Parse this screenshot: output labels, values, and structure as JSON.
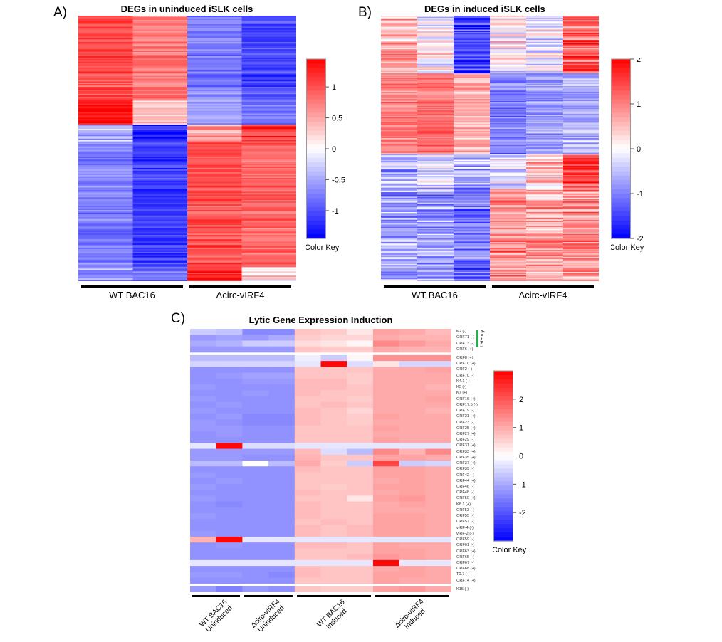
{
  "chart_data": [
    {
      "type": "heatmap",
      "panel": "A)",
      "title": "DEGs in uninduced iSLK cells",
      "columns": 4,
      "groups": [
        {
          "label": "WT BAC16",
          "columns": 2
        },
        {
          "label": "Δcirc-vIRF4",
          "columns": 2
        }
      ],
      "color_key": {
        "title": "Color Key",
        "low_color": "#0000ff",
        "mid_color": "#ffffff",
        "high_color": "#ff0000",
        "range": [
          -1.45,
          1.45
        ],
        "ticks": [
          {
            "value": 1,
            "label": "1"
          },
          {
            "value": 0.5,
            "label": "0.5"
          },
          {
            "value": 0,
            "label": "0"
          },
          {
            "value": -0.5,
            "label": "-0.5"
          },
          {
            "value": -1,
            "label": "-1"
          }
        ]
      },
      "row_blocks": [
        {
          "rows": 60,
          "means": [
            1.0,
            0.75,
            -0.75,
            -1.05
          ],
          "noise": 0.2
        },
        {
          "rows": 18,
          "means": [
            1.3,
            0.3,
            -0.5,
            -0.8
          ],
          "noise": 0.2
        },
        {
          "rows": 12,
          "means": [
            -0.4,
            -1.2,
            0.5,
            1.2
          ],
          "noise": 0.3
        },
        {
          "rows": 90,
          "means": [
            -0.75,
            -1.1,
            1.0,
            0.85
          ],
          "noise": 0.2
        },
        {
          "rows": 10,
          "means": [
            -0.6,
            -0.9,
            1.3,
            0.2
          ],
          "noise": 0.3
        }
      ]
    },
    {
      "type": "heatmap",
      "panel": "B)",
      "title": "DEGs in induced iSLK cells",
      "columns": 6,
      "groups": [
        {
          "label": "WT BAC16",
          "columns": 3
        },
        {
          "label": "Δcirc-vIRF4",
          "columns": 3
        }
      ],
      "color_key": {
        "title": "Color Key",
        "low_color": "#0000ff",
        "mid_color": "#ffffff",
        "high_color": "#ff0000",
        "range": [
          -2,
          2
        ],
        "ticks": [
          {
            "value": 2,
            "label": "2"
          },
          {
            "value": 1,
            "label": "1"
          },
          {
            "value": 0,
            "label": "0"
          },
          {
            "value": -1,
            "label": "-1"
          },
          {
            "value": -2,
            "label": "-2"
          }
        ]
      },
      "row_blocks": [
        {
          "rows": 50,
          "means": [
            0.6,
            0.0,
            -1.5,
            0.1,
            -0.2,
            1.3
          ],
          "noise": 0.6
        },
        {
          "rows": 70,
          "means": [
            1.0,
            1.1,
            0.6,
            -1.0,
            -0.8,
            -0.6
          ],
          "noise": 0.35
        },
        {
          "rows": 30,
          "means": [
            -0.6,
            -0.4,
            -0.6,
            -0.2,
            0.4,
            1.5
          ],
          "noise": 0.6
        },
        {
          "rows": 80,
          "means": [
            -0.7,
            -0.8,
            -1.1,
            0.9,
            0.7,
            0.9
          ],
          "noise": 0.55
        }
      ]
    },
    {
      "type": "heatmap",
      "panel": "C)",
      "title": "Lytic Gene Expression Induction",
      "columns": 10,
      "groups": [
        {
          "label": "WT BAC16\nUninduced",
          "columns": 2
        },
        {
          "label": "Δcirc-vIRF4\nUninduced",
          "columns": 2
        },
        {
          "label": "WT BAC16\nInduced",
          "columns": 3
        },
        {
          "label": "Δcirc-vIRF4\nInduced",
          "columns": 3
        }
      ],
      "annotation": {
        "label": "Latency",
        "color": "#22b14c",
        "rows": [
          "K2 (-)",
          "ORF71 (-)",
          "ORF73 (-)"
        ]
      },
      "color_key": {
        "title": "Color Key",
        "low_color": "#0000ff",
        "mid_color": "#ffffff",
        "high_color": "#ff0000",
        "range": [
          -3,
          3
        ],
        "ticks": [
          {
            "value": 2,
            "label": "2"
          },
          {
            "value": 1,
            "label": "1"
          },
          {
            "value": 0,
            "label": "0"
          },
          {
            "value": -1,
            "label": "-1"
          },
          {
            "value": -2,
            "label": "-2"
          }
        ]
      },
      "row_gaps_after": [
        "ORF6 (+)",
        "ORF74 (+)"
      ],
      "genes": [
        {
          "label": "K2 (-)",
          "values": [
            -0.6,
            -0.7,
            -1.4,
            -1.4,
            0.7,
            0.6,
            0.3,
            1.1,
            1.0,
            0.8
          ]
        },
        {
          "label": "ORF71 (-)",
          "values": [
            -1.2,
            -1.1,
            -1.2,
            -1.0,
            0.6,
            0.5,
            0.5,
            1.0,
            0.9,
            0.9
          ]
        },
        {
          "label": "ORF73 (-)",
          "values": [
            -1.0,
            -0.9,
            -0.6,
            -0.6,
            0.4,
            0.3,
            0.1,
            1.4,
            1.2,
            1.0
          ]
        },
        {
          "label": "ORF6 (+)",
          "values": [
            -1.2,
            -1.2,
            -1.2,
            -1.2,
            0.7,
            0.6,
            0.6,
            1.0,
            0.9,
            0.9
          ]
        },
        {
          "label": "ORF8 (+)",
          "values": [
            -0.8,
            -0.8,
            -0.8,
            -0.8,
            -0.2,
            -0.6,
            0.1,
            1.3,
            1.3,
            1.3
          ]
        },
        {
          "label": "ORF10 (+)",
          "values": [
            -0.5,
            -0.5,
            -0.5,
            -0.5,
            -0.3,
            2.9,
            -0.4,
            0.3,
            -0.5,
            -0.5
          ]
        },
        {
          "label": "ORF2 (-)",
          "values": [
            -1.3,
            -1.3,
            -1.3,
            -1.3,
            0.7,
            0.7,
            0.7,
            1.0,
            1.0,
            1.1
          ]
        },
        {
          "label": "ORF70 (-)",
          "values": [
            -1.3,
            -1.2,
            -1.1,
            -1.1,
            0.7,
            0.7,
            0.6,
            1.0,
            1.0,
            1.0
          ]
        },
        {
          "label": "K4.1 (-)",
          "values": [
            -1.3,
            -1.3,
            -1.2,
            -1.2,
            0.8,
            0.8,
            0.6,
            1.0,
            1.0,
            1.0
          ]
        },
        {
          "label": "K5 (-)",
          "values": [
            -1.2,
            -1.3,
            -1.3,
            -1.3,
            0.8,
            0.8,
            0.7,
            1.0,
            1.0,
            0.9
          ]
        },
        {
          "label": "K7 (+)",
          "values": [
            -1.3,
            -1.3,
            -1.2,
            -1.3,
            0.8,
            0.7,
            0.7,
            1.0,
            1.0,
            1.0
          ]
        },
        {
          "label": "ORF16 (+)",
          "values": [
            -1.2,
            -1.3,
            -1.3,
            -1.3,
            0.7,
            0.7,
            0.6,
            1.0,
            1.0,
            1.1
          ]
        },
        {
          "label": "ORF17.5 (-)",
          "values": [
            -1.3,
            -1.2,
            -1.3,
            -1.3,
            0.7,
            0.8,
            0.7,
            1.0,
            1.0,
            1.0
          ]
        },
        {
          "label": "ORF19 (-)",
          "values": [
            -1.2,
            -1.3,
            -1.3,
            -1.3,
            0.8,
            0.7,
            0.5,
            1.0,
            1.0,
            0.9
          ]
        },
        {
          "label": "ORF21 (+)",
          "values": [
            -1.3,
            -1.2,
            -1.4,
            -1.4,
            0.8,
            0.7,
            0.6,
            1.1,
            1.0,
            1.0
          ]
        },
        {
          "label": "ORF23 (-)",
          "values": [
            -1.2,
            -1.3,
            -1.4,
            -1.4,
            0.8,
            0.7,
            0.6,
            1.0,
            1.0,
            1.0
          ]
        },
        {
          "label": "ORF25 (+)",
          "values": [
            -1.2,
            -1.2,
            -1.3,
            -1.3,
            0.7,
            0.7,
            0.7,
            1.1,
            1.0,
            1.0
          ]
        },
        {
          "label": "ORF27 (+)",
          "values": [
            -1.3,
            -1.2,
            -1.3,
            -1.3,
            0.7,
            0.7,
            0.7,
            1.0,
            1.0,
            1.0
          ]
        },
        {
          "label": "ORF29 (-)",
          "values": [
            -1.3,
            -1.3,
            -1.3,
            -1.3,
            0.7,
            0.7,
            0.7,
            1.1,
            1.0,
            1.0
          ]
        },
        {
          "label": "ORF31 (+)",
          "values": [
            -0.3,
            2.9,
            -0.4,
            -0.4,
            -0.3,
            -0.3,
            -0.3,
            -0.3,
            -0.3,
            -0.3
          ]
        },
        {
          "label": "ORF33 (+)",
          "values": [
            -1.2,
            -1.2,
            -1.2,
            -1.2,
            0.8,
            -0.4,
            -0.8,
            1.4,
            0.9,
            1.4
          ]
        },
        {
          "label": "ORF35 (+)",
          "values": [
            -1.2,
            -1.2,
            -1.3,
            -1.3,
            0.9,
            0.7,
            0.7,
            1.1,
            1.1,
            1.0
          ]
        },
        {
          "label": "ORF37 (+)",
          "values": [
            -0.8,
            -0.8,
            0.0,
            -0.8,
            1.0,
            0.6,
            -0.6,
            2.2,
            -0.6,
            -0.5
          ]
        },
        {
          "label": "ORF39 (-)",
          "values": [
            -1.3,
            -1.3,
            -1.3,
            -1.3,
            0.8,
            0.7,
            0.7,
            1.1,
            1.1,
            1.0
          ]
        },
        {
          "label": "ORF42 (-)",
          "values": [
            -1.2,
            -1.3,
            -1.3,
            -1.3,
            0.7,
            0.7,
            0.7,
            1.1,
            1.1,
            1.0
          ]
        },
        {
          "label": "ORF44 (+)",
          "values": [
            -1.3,
            -1.2,
            -1.3,
            -1.3,
            0.7,
            0.7,
            0.7,
            1.0,
            1.1,
            1.0
          ]
        },
        {
          "label": "ORF46 (-)",
          "values": [
            -1.2,
            -1.3,
            -1.3,
            -1.3,
            0.7,
            0.6,
            0.7,
            1.1,
            1.1,
            1.0
          ]
        },
        {
          "label": "ORF48 (-)",
          "values": [
            -1.3,
            -1.3,
            -1.3,
            -1.3,
            0.8,
            0.7,
            0.7,
            1.0,
            1.1,
            1.0
          ]
        },
        {
          "label": "ORF50 (+)",
          "values": [
            -1.2,
            -1.3,
            -1.3,
            -1.3,
            0.7,
            0.7,
            0.3,
            1.1,
            1.2,
            1.0
          ]
        },
        {
          "label": "K8.1 (+)",
          "values": [
            -1.3,
            -1.4,
            -1.3,
            -1.3,
            0.8,
            0.7,
            0.7,
            1.0,
            1.1,
            1.0
          ]
        },
        {
          "label": "ORF53 (-)",
          "values": [
            -1.3,
            -1.3,
            -1.3,
            -1.3,
            0.8,
            0.7,
            0.7,
            1.0,
            1.0,
            1.0
          ]
        },
        {
          "label": "ORF55 (-)",
          "values": [
            -1.2,
            -1.3,
            -1.3,
            -1.3,
            0.8,
            0.7,
            0.7,
            1.1,
            1.1,
            1.0
          ]
        },
        {
          "label": "ORF57 (-)",
          "values": [
            -1.3,
            -1.3,
            -1.3,
            -1.3,
            0.7,
            0.8,
            0.7,
            1.1,
            1.1,
            1.0
          ]
        },
        {
          "label": "vIRF-4 (-)",
          "values": [
            -1.3,
            -1.3,
            -1.3,
            -1.3,
            0.8,
            0.7,
            0.8,
            1.1,
            1.1,
            1.0
          ]
        },
        {
          "label": "vIRF-2 (-)",
          "values": [
            -1.2,
            -1.3,
            -1.3,
            -1.3,
            0.8,
            0.7,
            0.8,
            1.1,
            1.1,
            1.0
          ]
        },
        {
          "label": "ORF59 (-)",
          "values": [
            0.9,
            2.9,
            -0.3,
            -0.3,
            -0.3,
            -0.3,
            -0.3,
            -0.3,
            -0.3,
            -0.3
          ]
        },
        {
          "label": "ORF61 (-)",
          "values": [
            -1.3,
            -1.2,
            -1.3,
            -1.3,
            0.8,
            0.8,
            0.7,
            1.1,
            1.0,
            1.0
          ]
        },
        {
          "label": "ORF63 (+)",
          "values": [
            -1.3,
            -1.3,
            -1.3,
            -1.3,
            0.7,
            0.7,
            0.7,
            1.1,
            1.1,
            1.0
          ]
        },
        {
          "label": "ORF65 (-)",
          "values": [
            -1.3,
            -1.3,
            -1.3,
            -1.3,
            0.7,
            0.7,
            0.8,
            1.2,
            1.1,
            1.0
          ]
        },
        {
          "label": "ORF67 (-)",
          "values": [
            -0.3,
            -0.3,
            -0.3,
            -0.3,
            -0.3,
            -0.3,
            -0.3,
            2.9,
            -0.3,
            -0.3
          ]
        },
        {
          "label": "ORF68 (+)",
          "values": [
            -1.3,
            -1.3,
            -1.3,
            -1.3,
            0.8,
            0.7,
            0.7,
            1.0,
            1.1,
            1.0
          ]
        },
        {
          "label": "T0.7 (-)",
          "values": [
            -1.2,
            -1.2,
            -1.3,
            -1.4,
            0.8,
            0.7,
            0.7,
            1.1,
            1.1,
            1.0
          ]
        },
        {
          "label": "ORF74 (+)",
          "values": [
            -1.3,
            -1.3,
            -1.3,
            -1.3,
            0.7,
            0.7,
            0.7,
            1.1,
            1.0,
            1.0
          ]
        },
        {
          "label": "K15 (-)",
          "values": [
            -1.2,
            -1.5,
            -1.2,
            -1.3,
            0.7,
            0.6,
            0.6,
            1.1,
            1.2,
            1.0
          ]
        }
      ]
    }
  ]
}
